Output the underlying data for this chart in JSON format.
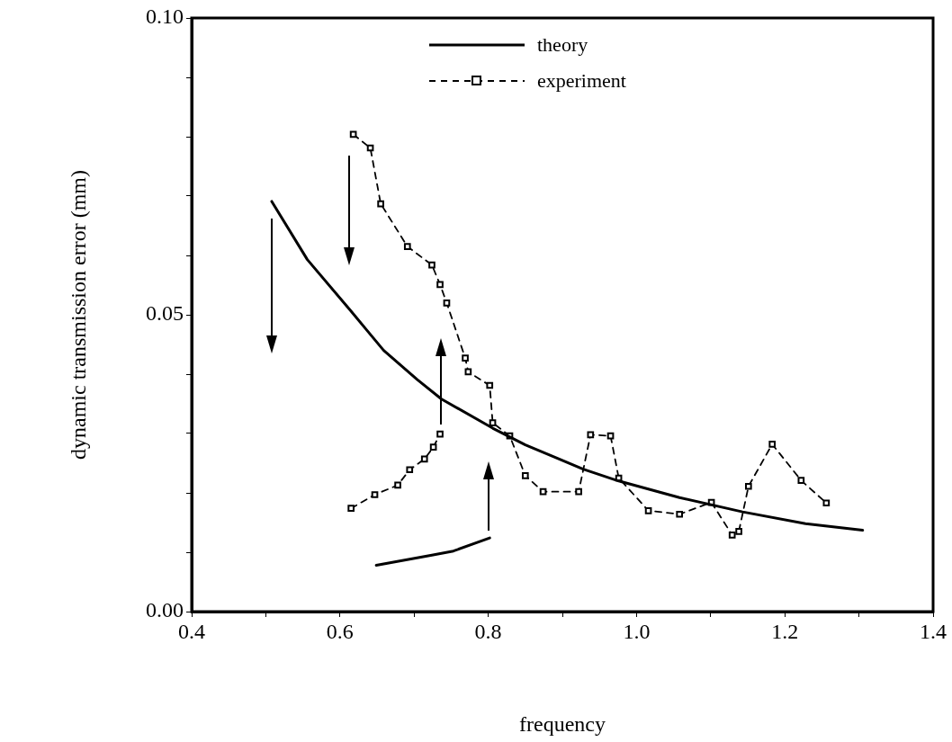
{
  "chart_data": {
    "type": "line",
    "xlabel": "frequency",
    "ylabel": "dynamic transmission error (mm)",
    "xlim": [
      0.4,
      1.4
    ],
    "ylim": [
      0,
      0.1
    ],
    "xticks": [
      0.4,
      {
        "value": 0.5,
        "label": null
      },
      0.6,
      {
        "value": 0.7,
        "label": null
      },
      0.8,
      {
        "value": 0.9,
        "label": null
      },
      {
        "value": 1.0,
        "label": "1.0"
      },
      {
        "value": 1.1,
        "label": null
      },
      1.2,
      {
        "value": 1.3,
        "label": null
      },
      1.4
    ],
    "yticks": [
      {
        "value": 0,
        "label": "0.00"
      },
      {
        "value": 0.01,
        "label": null
      },
      {
        "value": 0.02,
        "label": null
      },
      {
        "value": 0.03,
        "label": null
      },
      {
        "value": 0.04,
        "label": null
      },
      {
        "value": 0.05,
        "label": "0.05"
      },
      {
        "value": 0.06,
        "label": null
      },
      {
        "value": 0.07,
        "label": null
      },
      {
        "value": 0.08,
        "label": null
      },
      {
        "value": 0.09,
        "label": null
      },
      {
        "value": 0.1,
        "label": "0.10"
      }
    ],
    "grid": false,
    "legend": "top",
    "series": [
      {
        "name": "theory",
        "color": "#000000",
        "marker": "none",
        "line_style": "solid",
        "x": [
          0.508,
          0.556,
          0.615,
          0.635,
          0.659,
          0.704,
          0.737,
          0.806,
          0.85,
          0.928,
          0.976,
          1.058,
          1.143,
          1.228,
          1.305
        ],
        "values": [
          0.0691,
          0.0593,
          0.0506,
          0.0476,
          0.044,
          0.0391,
          0.0358,
          0.0309,
          0.0281,
          0.024,
          0.022,
          0.0192,
          0.0168,
          0.0148,
          0.0137
        ]
      },
      {
        "color": "#000000",
        "marker": "none",
        "line_style": "solid",
        "x": [
          0.649,
          0.724,
          0.753,
          0.802
        ],
        "values": [
          0.0078,
          0.0095,
          0.0102,
          0.0124
        ]
      },
      {
        "color": "#000000",
        "marker": "square",
        "line_style": "dashed",
        "x": [
          0.615,
          0.647,
          0.678,
          0.694,
          0.714,
          0.726,
          0.735
        ],
        "values": [
          0.0174,
          0.0197,
          0.0213,
          0.0239,
          0.0257,
          0.0277,
          0.0299
        ]
      },
      {
        "name": "experiment",
        "color": "#000000",
        "marker": "square",
        "line_style": "dashed",
        "x": [
          0.618,
          0.641,
          0.655,
          0.691,
          0.724,
          0.735,
          0.744,
          0.769,
          0.773,
          0.802,
          0.806,
          0.829,
          0.85,
          0.874,
          0.922,
          0.938,
          0.965,
          0.976,
          1.016,
          1.058,
          1.101,
          1.129,
          1.138,
          1.151,
          1.183,
          1.222,
          1.256
        ],
        "values": [
          0.0804,
          0.0781,
          0.0687,
          0.0615,
          0.0584,
          0.0551,
          0.052,
          0.0427,
          0.0404,
          0.0381,
          0.0318,
          0.0296,
          0.0229,
          0.0202,
          0.0202,
          0.0298,
          0.0296,
          0.0225,
          0.017,
          0.0164,
          0.0184,
          0.0129,
          0.0135,
          0.0211,
          0.0282,
          0.0221,
          0.0183
        ]
      }
    ]
  }
}
